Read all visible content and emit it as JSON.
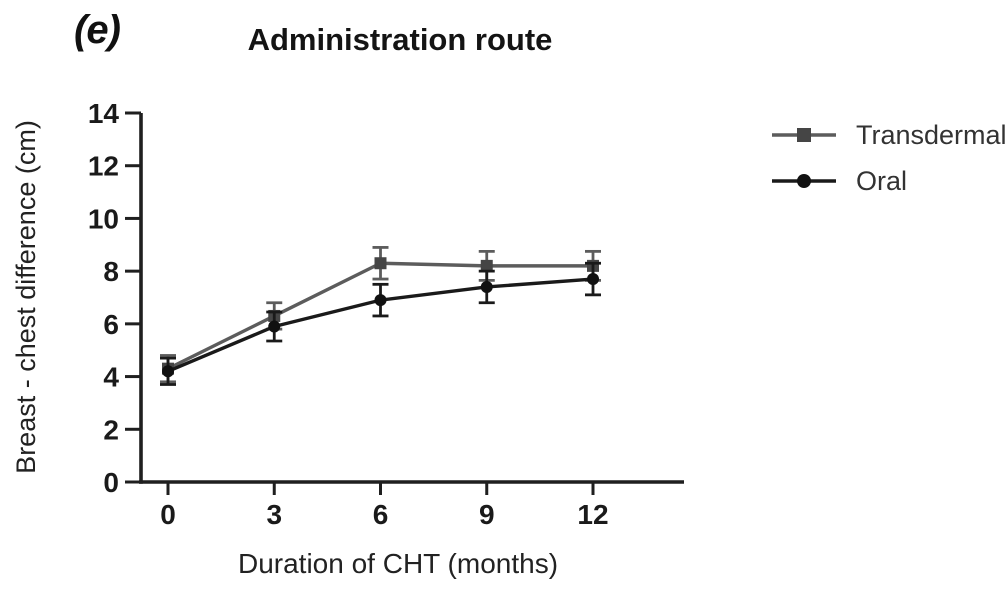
{
  "panel_label": "(e)",
  "title": "Administration route",
  "chart_data": {
    "type": "line",
    "title": "Administration route",
    "xlabel": "Duration of CHT (months)",
    "ylabel": "Breast - chest difference (cm)",
    "x": [
      0,
      3,
      6,
      9,
      12
    ],
    "xticks": [
      "0",
      "3",
      "6",
      "9",
      "12"
    ],
    "yticks": [
      "0",
      "2",
      "4",
      "6",
      "8",
      "10",
      "12",
      "14"
    ],
    "xlim": [
      0,
      12
    ],
    "ylim": [
      0,
      14
    ],
    "grid": false,
    "legend_position": "right",
    "error_bars": true,
    "series": [
      {
        "name": "Transdermal",
        "marker": "square",
        "line_color": "#5c5c5c",
        "marker_color": "#454545",
        "values": [
          4.3,
          6.3,
          8.3,
          8.2,
          8.2
        ],
        "errors": [
          0.5,
          0.5,
          0.6,
          0.55,
          0.55
        ]
      },
      {
        "name": "Oral",
        "marker": "circle",
        "line_color": "#1a1a1a",
        "marker_color": "#111111",
        "values": [
          4.2,
          5.9,
          6.9,
          7.4,
          7.7
        ],
        "errors": [
          0.5,
          0.55,
          0.6,
          0.6,
          0.6
        ]
      }
    ],
    "colors": {
      "axis": "#1f1f1f",
      "tick_text": "#1a1a1a"
    }
  }
}
